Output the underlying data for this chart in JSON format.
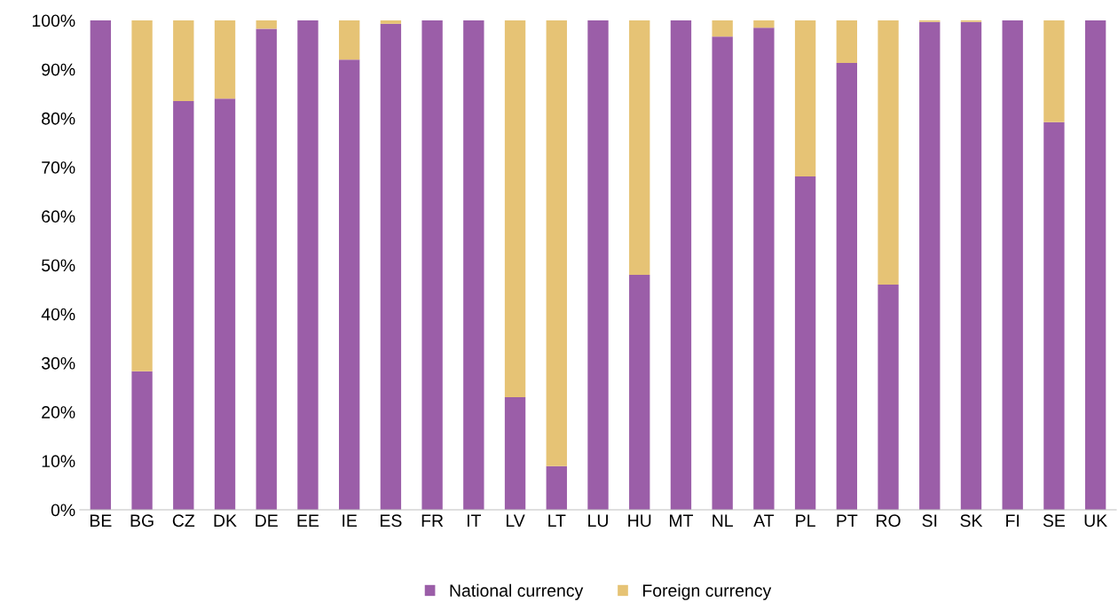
{
  "chart_data": {
    "type": "bar",
    "stacked": true,
    "categories": [
      "BE",
      "BG",
      "CZ",
      "DK",
      "DE",
      "EE",
      "IE",
      "ES",
      "FR",
      "IT",
      "LV",
      "LT",
      "LU",
      "HU",
      "MT",
      "NL",
      "AT",
      "PL",
      "PT",
      "RO",
      "SI",
      "SK",
      "FI",
      "SE",
      "UK"
    ],
    "series": [
      {
        "name": "National currency",
        "color": "#9b5ea8",
        "values": [
          100,
          28.3,
          83.5,
          84,
          98.3,
          100,
          92,
          99.3,
          100,
          100,
          23,
          8.9,
          100,
          48,
          100,
          96.7,
          98.5,
          68.1,
          91.3,
          46,
          99.7,
          99.7,
          100,
          79.2,
          100
        ]
      },
      {
        "name": "Foreign currency",
        "color": "#e6c375",
        "values": [
          0,
          71.7,
          16.5,
          16,
          1.7,
          0,
          8,
          0.7,
          0,
          0,
          77,
          91.1,
          0,
          52,
          0,
          3.3,
          1.5,
          31.9,
          8.7,
          54,
          0.3,
          0.3,
          0,
          20.8,
          0
        ]
      }
    ],
    "ylim": [
      0,
      100
    ],
    "yticks": [
      {
        "value": 0,
        "label": "0%"
      },
      {
        "value": 10,
        "label": "10%"
      },
      {
        "value": 20,
        "label": "20%"
      },
      {
        "value": 30,
        "label": "30%"
      },
      {
        "value": 40,
        "label": "40%"
      },
      {
        "value": 50,
        "label": "50%"
      },
      {
        "value": 60,
        "label": "60%"
      },
      {
        "value": 70,
        "label": "70%"
      },
      {
        "value": 80,
        "label": "80%"
      },
      {
        "value": 90,
        "label": "90%"
      },
      {
        "value": 100,
        "label": "100%"
      }
    ],
    "legend": "bottom"
  }
}
